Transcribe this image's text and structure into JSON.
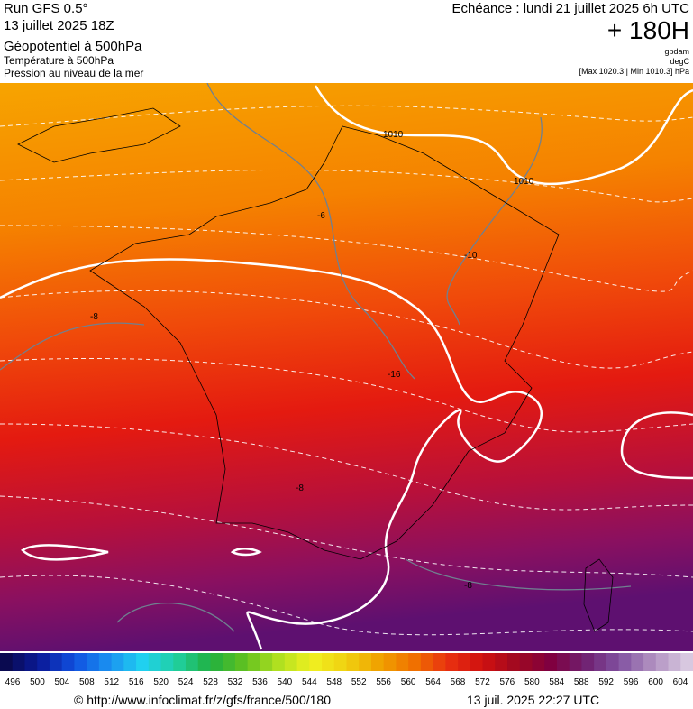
{
  "header": {
    "left": [
      "Run GFS 0.5°",
      "13 juillet 2025 18Z",
      "Géopotentiel à 500hPa",
      "Température à 500hPa",
      "Pression au niveau de la mer"
    ],
    "echeance": "Echéance : lundi 21 juillet 2025 6h UTC",
    "hour": "+ 180H",
    "units": [
      "gpdam",
      "degC",
      "[Max 1020.3 | Min 1010.3] hPa"
    ]
  },
  "map": {
    "labels": [
      "1010",
      "1010",
      "-6",
      "-8",
      "-10",
      "-16",
      "-8",
      "-8"
    ]
  },
  "colorbar": {
    "labels": [
      496,
      500,
      504,
      508,
      512,
      516,
      520,
      524,
      528,
      532,
      536,
      540,
      544,
      548,
      552,
      556,
      560,
      564,
      568,
      572,
      576,
      580,
      584,
      588,
      592,
      596,
      600,
      604
    ]
  },
  "footer": {
    "source": "© http://www.infoclimat.fr/z/gfs/france/500/180",
    "date": "13 juil. 2025 22:27 UTC"
  }
}
